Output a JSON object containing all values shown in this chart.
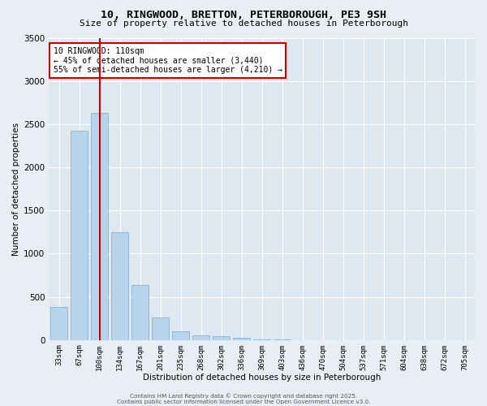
{
  "title": "10, RINGWOOD, BRETTON, PETERBOROUGH, PE3 9SH",
  "subtitle": "Size of property relative to detached houses in Peterborough",
  "xlabel": "Distribution of detached houses by size in Peterborough",
  "ylabel": "Number of detached properties",
  "bar_color": "#b8d4ea",
  "bar_edge_color": "#8ab4d4",
  "background_color": "#dde8f0",
  "fig_background": "#e8eef4",
  "grid_color": "#ffffff",
  "categories": [
    "33sqm",
    "67sqm",
    "100sqm",
    "134sqm",
    "167sqm",
    "201sqm",
    "235sqm",
    "268sqm",
    "302sqm",
    "336sqm",
    "369sqm",
    "403sqm",
    "436sqm",
    "470sqm",
    "504sqm",
    "537sqm",
    "571sqm",
    "604sqm",
    "638sqm",
    "672sqm",
    "705sqm"
  ],
  "values": [
    380,
    2420,
    2630,
    1250,
    640,
    260,
    105,
    55,
    40,
    25,
    10,
    5,
    2,
    1,
    1,
    0,
    0,
    0,
    0,
    0,
    0
  ],
  "vline_x_index": 2.0,
  "vline_color": "#cc0000",
  "annotation_line1": "10 RINGWOOD: 110sqm",
  "annotation_line2": "← 45% of detached houses are smaller (3,440)",
  "annotation_line3": "55% of semi-detached houses are larger (4,210) →",
  "ylim": [
    0,
    3500
  ],
  "yticks": [
    0,
    500,
    1000,
    1500,
    2000,
    2500,
    3000,
    3500
  ],
  "footer1": "Contains HM Land Registry data © Crown copyright and database right 2025.",
  "footer2": "Contains public sector information licensed under the Open Government Licence v3.0."
}
